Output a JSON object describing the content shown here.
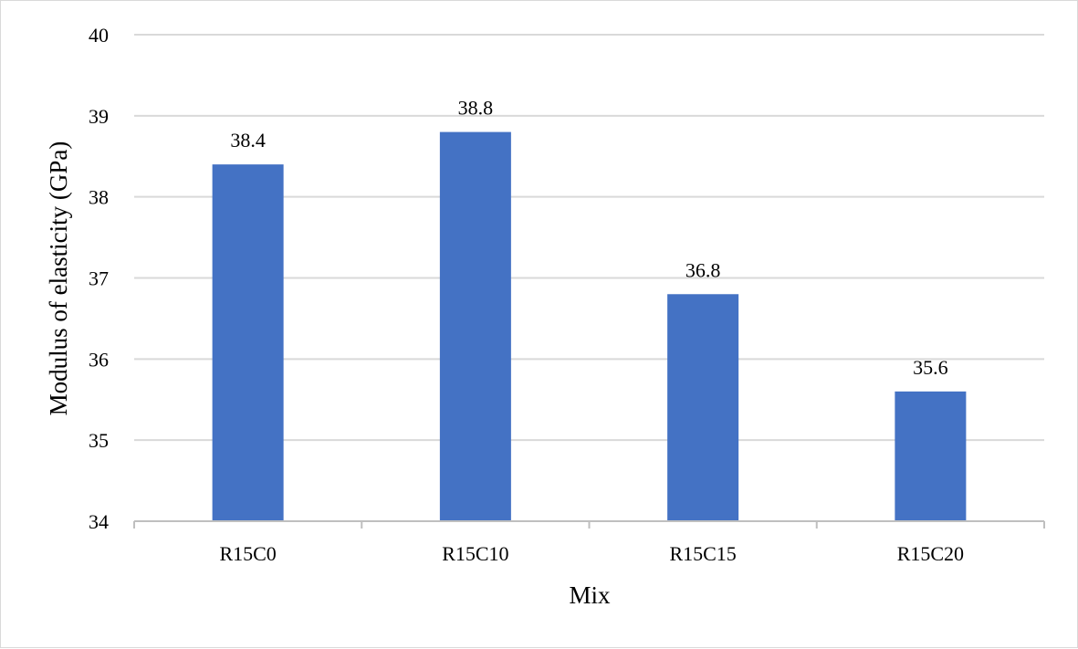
{
  "chart_data": {
    "type": "bar",
    "categories": [
      "R15C0",
      "R15C10",
      "R15C15",
      "R15C20"
    ],
    "values": [
      38.4,
      38.8,
      36.8,
      35.6
    ],
    "data_labels": [
      "38.4",
      "38.8",
      "36.8",
      "35.6"
    ],
    "title": "",
    "xlabel": "Mix",
    "ylabel": "Modulus of elasticity (GPa)",
    "ylim": [
      34,
      40
    ],
    "yticks": [
      34,
      35,
      36,
      37,
      38,
      39,
      40
    ],
    "grid": true,
    "legend": "none",
    "colors": {
      "bar": "#4472c4",
      "grid": "#d9d9d9",
      "axis": "#bfbfbf",
      "text": "#000000"
    }
  }
}
